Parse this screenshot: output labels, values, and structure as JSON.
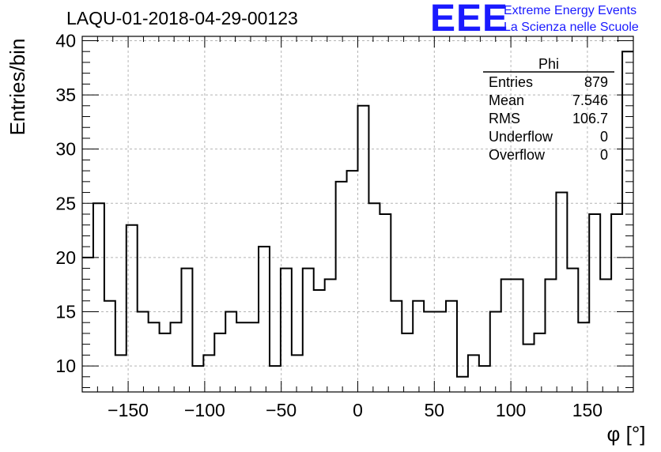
{
  "title": "LAQU-01-2018-04-29-00123",
  "logo": {
    "mark": "EEE",
    "line1": "Extreme Energy Events",
    "line2": "La Scienza nelle Scuole",
    "color": "#1a1aff"
  },
  "stats": {
    "name": "Phi",
    "rows": [
      {
        "label": "Entries",
        "value": "879"
      },
      {
        "label": "Mean",
        "value": "7.546"
      },
      {
        "label": "RMS",
        "value": "106.7"
      },
      {
        "label": "Underflow",
        "value": "0"
      },
      {
        "label": "Overflow",
        "value": "0"
      }
    ]
  },
  "chart_data": {
    "type": "histogram",
    "title": "LAQU-01-2018-04-29-00123",
    "xlabel": "φ [°]",
    "ylabel": "Entries/bin",
    "xlim": [
      -180,
      180
    ],
    "ylim": [
      7.6,
      40.4
    ],
    "bin_width": 7.2,
    "bin_start": -180,
    "values": [
      20,
      25,
      16,
      11,
      23,
      15,
      14,
      13,
      14,
      19,
      10,
      11,
      13,
      15,
      14,
      14,
      21,
      10,
      19,
      11,
      19,
      17,
      18,
      27,
      28,
      34,
      25,
      24,
      16,
      13,
      16,
      15,
      15,
      16,
      9,
      11,
      10,
      15,
      18,
      18,
      12,
      13,
      18,
      26,
      19,
      14,
      24,
      18,
      24,
      39
    ],
    "xticks": [
      -150,
      -100,
      -50,
      0,
      50,
      100,
      150
    ],
    "yticks": [
      10,
      15,
      20,
      25,
      30,
      35,
      40
    ],
    "grid": true,
    "line_color": "#000000",
    "grid_color": "#b4b4b4"
  }
}
